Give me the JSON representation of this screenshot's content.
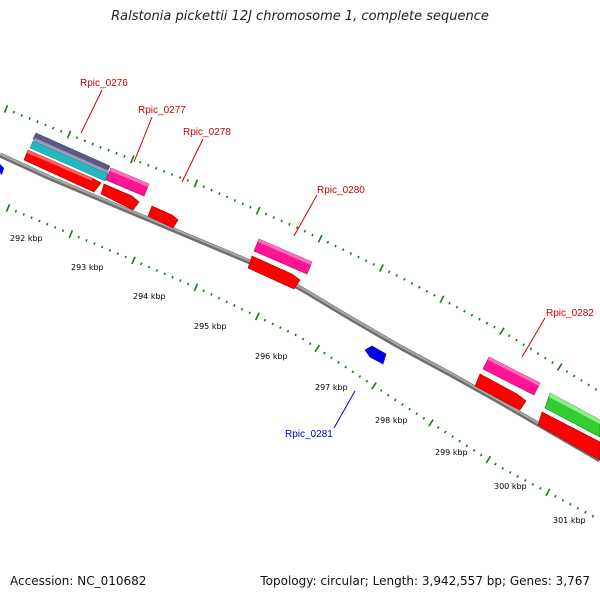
{
  "title": "Ralstonia pickettii 12J chromosome 1, complete sequence",
  "footer": {
    "accession": "Accession: NC_010682",
    "topology": "Topology: circular; Length: 3,942,557 bp; Genes: 3,767"
  },
  "colors": {
    "backbone": "#8a8a8a",
    "forward_gene": "#ff0000",
    "reverse_gene": "#0000ff",
    "pink_feature": "#ff1493",
    "green_feature": "#33cc33",
    "cyan_feature": "#20c0c8",
    "slate_feature": "#6a6a9a",
    "tick_color": "#1a7a1a",
    "forward_label": "#cc0000",
    "reverse_label": "#0000cc"
  },
  "scale_labels": [
    "292 kbp",
    "293 kbp",
    "294 kbp",
    "295 kbp",
    "296 kbp",
    "297 kbp",
    "298 kbp",
    "299 kbp",
    "300 kbp",
    "301 kbp"
  ],
  "genes": [
    {
      "label": "Rpic_0276",
      "strand": "forward"
    },
    {
      "label": "Rpic_0277",
      "strand": "forward"
    },
    {
      "label": "Rpic_0278",
      "strand": "forward"
    },
    {
      "label": "Rpic_0280",
      "strand": "forward"
    },
    {
      "label": "Rpic_0281",
      "strand": "reverse"
    },
    {
      "label": "Rpic_0282",
      "strand": "forward"
    }
  ]
}
